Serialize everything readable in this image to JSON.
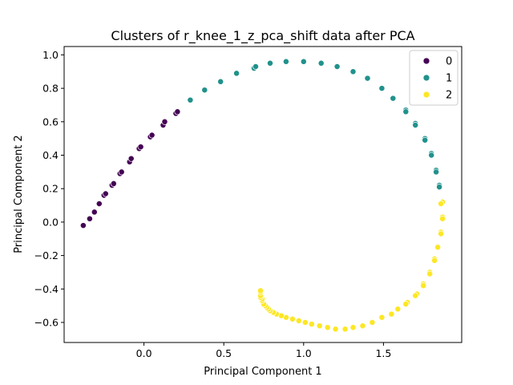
{
  "chart_data": {
    "type": "scatter",
    "title": "Clusters of r_knee_1_z_pca_shift data after PCA",
    "xlabel": "Principal Component 1",
    "ylabel": "Principal Component 2",
    "xlim": [
      -0.5,
      1.99
    ],
    "ylim": [
      -0.72,
      1.05
    ],
    "xticks": [
      0.0,
      0.5,
      1.0,
      1.5
    ],
    "xtick_labels": [
      "0.0",
      "0.5",
      "1.0",
      "1.5"
    ],
    "yticks": [
      -0.6,
      -0.4,
      -0.2,
      0.0,
      0.2,
      0.4,
      0.6,
      0.8,
      1.0
    ],
    "ytick_labels": [
      "−0.6",
      "−0.4",
      "−0.2",
      "0.0",
      "0.2",
      "0.4",
      "0.6",
      "0.8",
      "1.0"
    ],
    "grid": false,
    "legend_position": "top-right",
    "series": [
      {
        "name": "0",
        "color": "#440154",
        "points": [
          [
            -0.38,
            -0.02
          ],
          [
            -0.34,
            0.02
          ],
          [
            -0.31,
            0.06
          ],
          [
            -0.28,
            0.11
          ],
          [
            -0.25,
            0.16
          ],
          [
            -0.24,
            0.17
          ],
          [
            -0.2,
            0.22
          ],
          [
            -0.19,
            0.23
          ],
          [
            -0.15,
            0.29
          ],
          [
            -0.14,
            0.3
          ],
          [
            -0.09,
            0.36
          ],
          [
            -0.08,
            0.38
          ],
          [
            -0.03,
            0.44
          ],
          [
            -0.02,
            0.45
          ],
          [
            0.04,
            0.51
          ],
          [
            0.05,
            0.52
          ],
          [
            0.12,
            0.58
          ],
          [
            0.13,
            0.6
          ],
          [
            0.2,
            0.65
          ],
          [
            0.21,
            0.66
          ]
        ]
      },
      {
        "name": "1",
        "color": "#21918c",
        "points": [
          [
            0.29,
            0.73
          ],
          [
            0.38,
            0.79
          ],
          [
            0.48,
            0.84
          ],
          [
            0.58,
            0.89
          ],
          [
            0.69,
            0.92
          ],
          [
            0.7,
            0.93
          ],
          [
            0.79,
            0.95
          ],
          [
            0.89,
            0.96
          ],
          [
            1.0,
            0.96
          ],
          [
            1.11,
            0.95
          ],
          [
            1.21,
            0.93
          ],
          [
            1.31,
            0.9
          ],
          [
            1.4,
            0.86
          ],
          [
            1.49,
            0.8
          ],
          [
            1.56,
            0.74
          ],
          [
            1.64,
            0.67
          ],
          [
            1.64,
            0.66
          ],
          [
            1.7,
            0.59
          ],
          [
            1.7,
            0.58
          ],
          [
            1.76,
            0.5
          ],
          [
            1.76,
            0.49
          ],
          [
            1.8,
            0.41
          ],
          [
            1.8,
            0.4
          ],
          [
            1.83,
            0.31
          ],
          [
            1.83,
            0.3
          ],
          [
            1.85,
            0.22
          ],
          [
            1.85,
            0.21
          ]
        ]
      },
      {
        "name": "2",
        "color": "#fde725",
        "points": [
          [
            1.87,
            0.12
          ],
          [
            1.86,
            0.11
          ],
          [
            1.87,
            0.03
          ],
          [
            1.87,
            0.02
          ],
          [
            1.86,
            -0.06
          ],
          [
            1.86,
            -0.07
          ],
          [
            1.84,
            -0.15
          ],
          [
            1.82,
            -0.22
          ],
          [
            1.82,
            -0.23
          ],
          [
            1.79,
            -0.3
          ],
          [
            1.79,
            -0.31
          ],
          [
            1.75,
            -0.37
          ],
          [
            1.75,
            -0.38
          ],
          [
            1.71,
            -0.43
          ],
          [
            1.7,
            -0.44
          ],
          [
            1.65,
            -0.48
          ],
          [
            1.64,
            -0.49
          ],
          [
            1.59,
            -0.52
          ],
          [
            1.55,
            -0.55
          ],
          [
            1.49,
            -0.57
          ],
          [
            1.43,
            -0.6
          ],
          [
            1.37,
            -0.62
          ],
          [
            1.31,
            -0.63
          ],
          [
            1.26,
            -0.64
          ],
          [
            1.2,
            -0.64
          ],
          [
            1.15,
            -0.63
          ],
          [
            1.1,
            -0.62
          ],
          [
            1.05,
            -0.61
          ],
          [
            1.01,
            -0.6
          ],
          [
            0.97,
            -0.59
          ],
          [
            0.93,
            -0.58
          ],
          [
            0.89,
            -0.57
          ],
          [
            0.86,
            -0.56
          ],
          [
            0.83,
            -0.55
          ],
          [
            0.81,
            -0.54
          ],
          [
            0.79,
            -0.53
          ],
          [
            0.78,
            -0.52
          ],
          [
            0.77,
            -0.51
          ],
          [
            0.76,
            -0.5
          ],
          [
            0.75,
            -0.49
          ],
          [
            0.74,
            -0.47
          ],
          [
            0.74,
            -0.46
          ],
          [
            0.73,
            -0.45
          ],
          [
            0.73,
            -0.44
          ],
          [
            0.73,
            -0.42
          ],
          [
            0.73,
            -0.41
          ]
        ]
      }
    ]
  }
}
